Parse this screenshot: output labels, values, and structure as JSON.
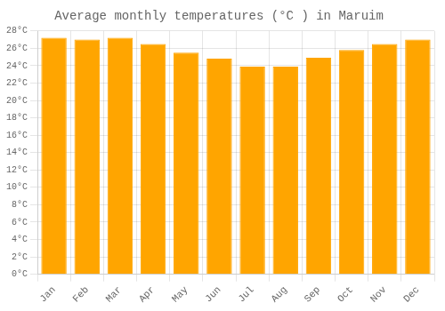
{
  "chart_data": {
    "type": "bar",
    "title": "Average monthly temperatures (°C ) in Maruim",
    "categories": [
      "Jan",
      "Feb",
      "Mar",
      "Apr",
      "May",
      "Jun",
      "Jul",
      "Aug",
      "Sep",
      "Oct",
      "Nov",
      "Dec"
    ],
    "values": [
      27.2,
      27.0,
      27.2,
      26.5,
      25.5,
      24.8,
      23.9,
      23.9,
      24.9,
      25.8,
      26.5,
      27.0
    ],
    "color": "#FFA500",
    "ylim": [
      0,
      28
    ],
    "yticks": [
      {
        "value": 0,
        "label": "0°C"
      },
      {
        "value": 2,
        "label": "2°C"
      },
      {
        "value": 4,
        "label": "4°C"
      },
      {
        "value": 6,
        "label": "6°C"
      },
      {
        "value": 8,
        "label": "8°C"
      },
      {
        "value": 10,
        "label": "10°C"
      },
      {
        "value": 12,
        "label": "12°C"
      },
      {
        "value": 14,
        "label": "14°C"
      },
      {
        "value": 16,
        "label": "16°C"
      },
      {
        "value": 18,
        "label": "18°C"
      },
      {
        "value": 20,
        "label": "20°C"
      },
      {
        "value": 22,
        "label": "22°C"
      },
      {
        "value": 24,
        "label": "24°C"
      },
      {
        "value": 26,
        "label": "26°C"
      },
      {
        "value": 28,
        "label": "28°C"
      }
    ],
    "grid": true
  }
}
